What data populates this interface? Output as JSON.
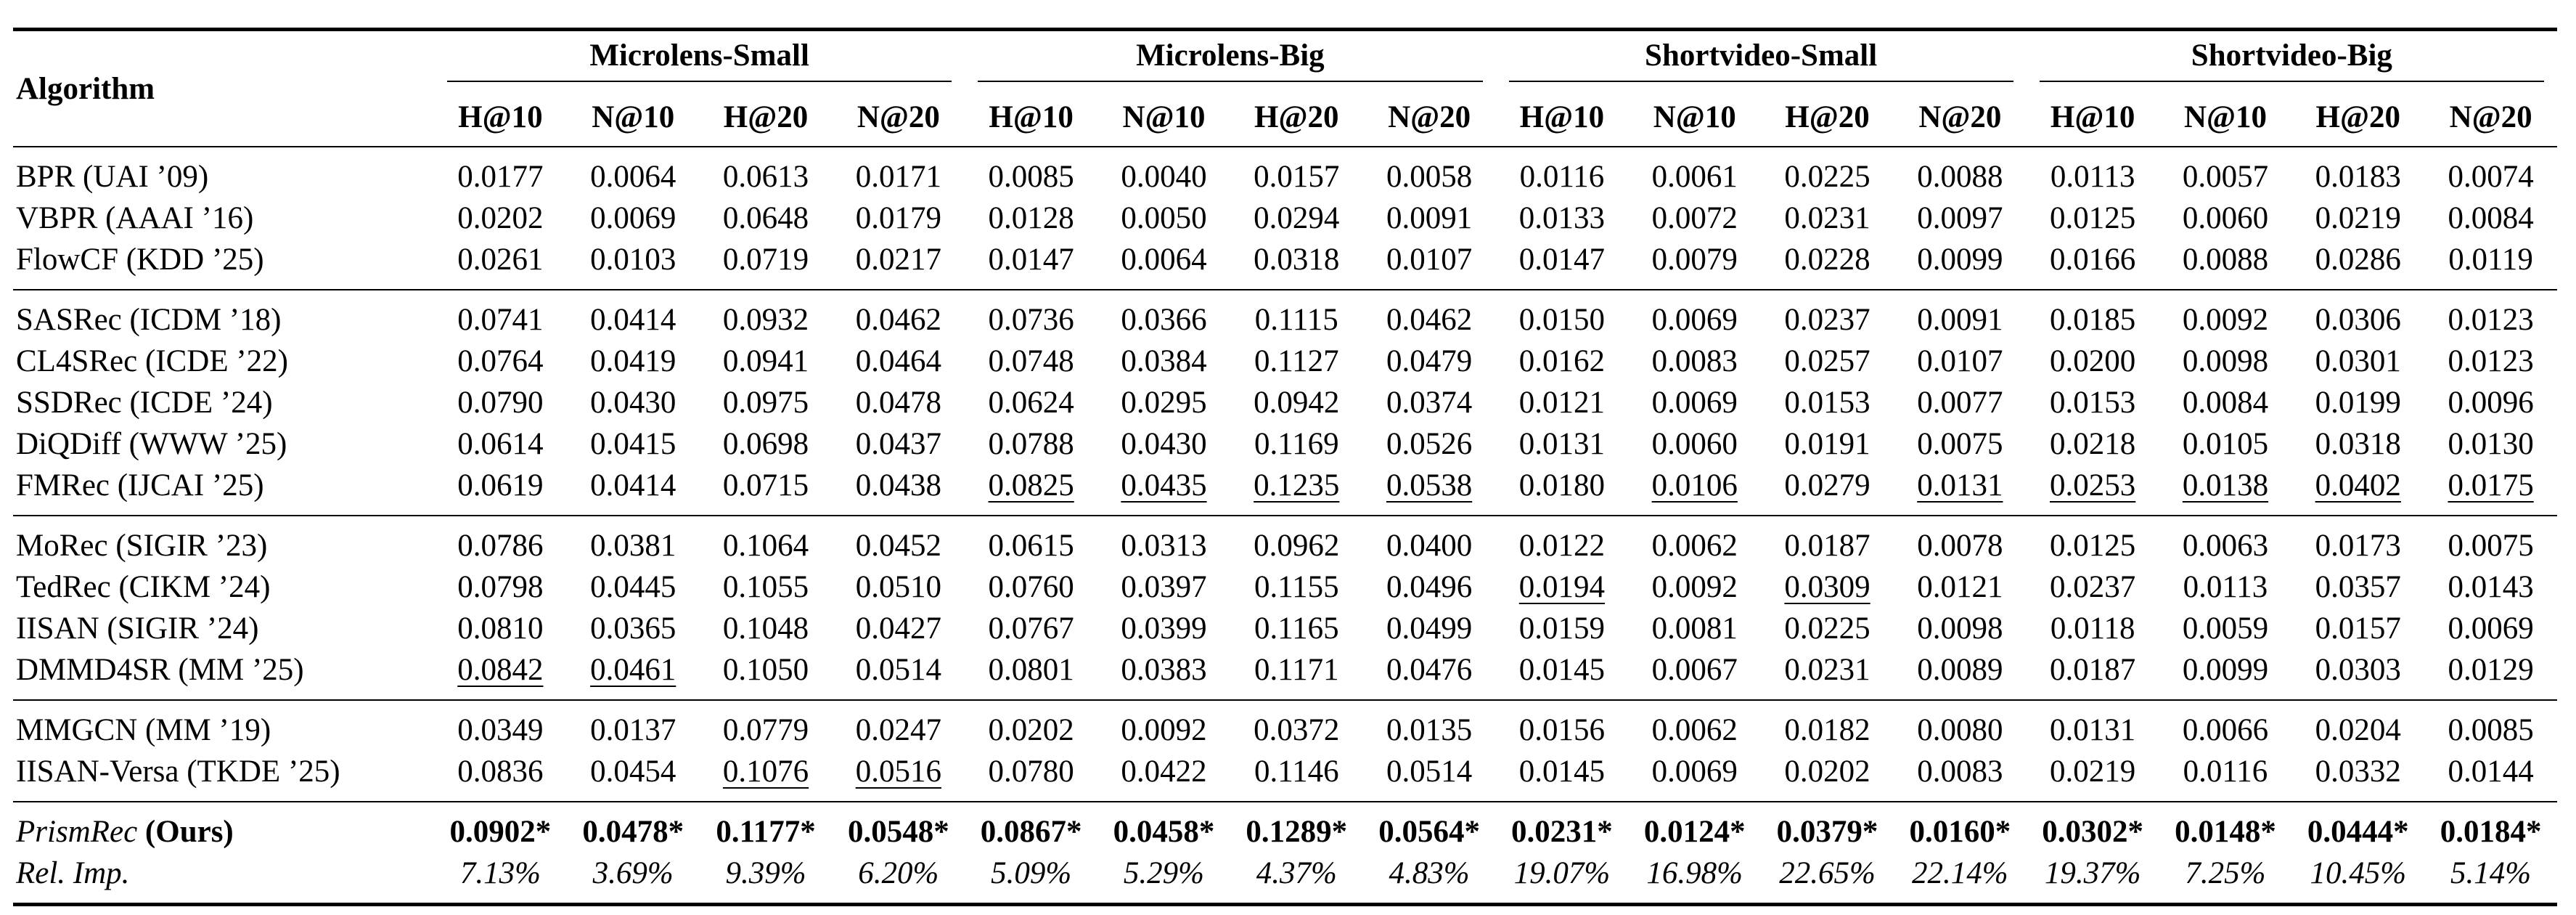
{
  "table": {
    "header": {
      "first": "Algorithm",
      "groups": [
        {
          "name": "Microlens-Small",
          "metrics": [
            "H@10",
            "N@10",
            "H@20",
            "N@20"
          ]
        },
        {
          "name": "Microlens-Big",
          "metrics": [
            "H@10",
            "N@10",
            "H@20",
            "N@20"
          ]
        },
        {
          "name": "Shortvideo-Small",
          "metrics": [
            "H@10",
            "N@10",
            "H@20",
            "N@20"
          ]
        },
        {
          "name": "Shortvideo-Big",
          "metrics": [
            "H@10",
            "N@10",
            "H@20",
            "N@20"
          ]
        }
      ]
    },
    "sections": [
      {
        "rows": [
          {
            "algorithm": "BPR (UAI ’09)",
            "values": [
              "0.0177",
              "0.0064",
              "0.0613",
              "0.0171",
              "0.0085",
              "0.0040",
              "0.0157",
              "0.0058",
              "0.0116",
              "0.0061",
              "0.0225",
              "0.0088",
              "0.0113",
              "0.0057",
              "0.0183",
              "0.0074"
            ]
          },
          {
            "algorithm": "VBPR (AAAI ’16)",
            "values": [
              "0.0202",
              "0.0069",
              "0.0648",
              "0.0179",
              "0.0128",
              "0.0050",
              "0.0294",
              "0.0091",
              "0.0133",
              "0.0072",
              "0.0231",
              "0.0097",
              "0.0125",
              "0.0060",
              "0.0219",
              "0.0084"
            ]
          },
          {
            "algorithm": "FlowCF (KDD ’25)",
            "values": [
              "0.0261",
              "0.0103",
              "0.0719",
              "0.0217",
              "0.0147",
              "0.0064",
              "0.0318",
              "0.0107",
              "0.0147",
              "0.0079",
              "0.0228",
              "0.0099",
              "0.0166",
              "0.0088",
              "0.0286",
              "0.0119"
            ]
          }
        ]
      },
      {
        "rows": [
          {
            "algorithm": "SASRec (ICDM ’18)",
            "values": [
              "0.0741",
              "0.0414",
              "0.0932",
              "0.0462",
              "0.0736",
              "0.0366",
              "0.1115",
              "0.0462",
              "0.0150",
              "0.0069",
              "0.0237",
              "0.0091",
              "0.0185",
              "0.0092",
              "0.0306",
              "0.0123"
            ]
          },
          {
            "algorithm": "CL4SRec (ICDE ’22)",
            "values": [
              "0.0764",
              "0.0419",
              "0.0941",
              "0.0464",
              "0.0748",
              "0.0384",
              "0.1127",
              "0.0479",
              "0.0162",
              "0.0083",
              "0.0257",
              "0.0107",
              "0.0200",
              "0.0098",
              "0.0301",
              "0.0123"
            ]
          },
          {
            "algorithm": "SSDRec (ICDE ’24)",
            "values": [
              "0.0790",
              "0.0430",
              "0.0975",
              "0.0478",
              "0.0624",
              "0.0295",
              "0.0942",
              "0.0374",
              "0.0121",
              "0.0069",
              "0.0153",
              "0.0077",
              "0.0153",
              "0.0084",
              "0.0199",
              "0.0096"
            ]
          },
          {
            "algorithm": "DiQDiff (WWW ’25)",
            "values": [
              "0.0614",
              "0.0415",
              "0.0698",
              "0.0437",
              "0.0788",
              "0.0430",
              "0.1169",
              "0.0526",
              "0.0131",
              "0.0060",
              "0.0191",
              "0.0075",
              "0.0218",
              "0.0105",
              "0.0318",
              "0.0130"
            ]
          },
          {
            "algorithm": "FMRec (IJCAI ’25)",
            "values": [
              "0.0619",
              "0.0414",
              "0.0715",
              "0.0438",
              "0.0825",
              "0.0435",
              "0.1235",
              "0.0538",
              "0.0180",
              "0.0106",
              "0.0279",
              "0.0131",
              "0.0253",
              "0.0138",
              "0.0402",
              "0.0175"
            ],
            "underlined": [
              4,
              5,
              6,
              7,
              9,
              11,
              12,
              13,
              14,
              15
            ]
          }
        ]
      },
      {
        "rows": [
          {
            "algorithm": "MoRec (SIGIR ’23)",
            "values": [
              "0.0786",
              "0.0381",
              "0.1064",
              "0.0452",
              "0.0615",
              "0.0313",
              "0.0962",
              "0.0400",
              "0.0122",
              "0.0062",
              "0.0187",
              "0.0078",
              "0.0125",
              "0.0063",
              "0.0173",
              "0.0075"
            ]
          },
          {
            "algorithm": "TedRec (CIKM ’24)",
            "values": [
              "0.0798",
              "0.0445",
              "0.1055",
              "0.0510",
              "0.0760",
              "0.0397",
              "0.1155",
              "0.0496",
              "0.0194",
              "0.0092",
              "0.0309",
              "0.0121",
              "0.0237",
              "0.0113",
              "0.0357",
              "0.0143"
            ],
            "underlined": [
              8,
              10
            ]
          },
          {
            "algorithm": "IISAN (SIGIR ’24)",
            "values": [
              "0.0810",
              "0.0365",
              "0.1048",
              "0.0427",
              "0.0767",
              "0.0399",
              "0.1165",
              "0.0499",
              "0.0159",
              "0.0081",
              "0.0225",
              "0.0098",
              "0.0118",
              "0.0059",
              "0.0157",
              "0.0069"
            ]
          },
          {
            "algorithm": "DMMD4SR (MM ’25)",
            "values": [
              "0.0842",
              "0.0461",
              "0.1050",
              "0.0514",
              "0.0801",
              "0.0383",
              "0.1171",
              "0.0476",
              "0.0145",
              "0.0067",
              "0.0231",
              "0.0089",
              "0.0187",
              "0.0099",
              "0.0303",
              "0.0129"
            ],
            "underlined": [
              0,
              1
            ]
          }
        ]
      },
      {
        "rows": [
          {
            "algorithm": "MMGCN (MM ’19)",
            "values": [
              "0.0349",
              "0.0137",
              "0.0779",
              "0.0247",
              "0.0202",
              "0.0092",
              "0.0372",
              "0.0135",
              "0.0156",
              "0.0062",
              "0.0182",
              "0.0080",
              "0.0131",
              "0.0066",
              "0.0204",
              "0.0085"
            ]
          },
          {
            "algorithm": "IISAN-Versa (TKDE ’25)",
            "values": [
              "0.0836",
              "0.0454",
              "0.1076",
              "0.0516",
              "0.0780",
              "0.0422",
              "0.1146",
              "0.0514",
              "0.0145",
              "0.0069",
              "0.0202",
              "0.0083",
              "0.0219",
              "0.0116",
              "0.0332",
              "0.0144"
            ],
            "underlined": [
              2,
              3
            ]
          }
        ]
      },
      {
        "rows": [
          {
            "name": "PrismRec",
            "suffix": "(Ours)",
            "style": "bold",
            "values": [
              "0.0902*",
              "0.0478*",
              "0.1177*",
              "0.0548*",
              "0.0867*",
              "0.0458*",
              "0.1289*",
              "0.0564*",
              "0.0231*",
              "0.0124*",
              "0.0379*",
              "0.0160*",
              "0.0302*",
              "0.0148*",
              "0.0444*",
              "0.0184*"
            ]
          },
          {
            "algorithm": "Rel. Imp.",
            "style": "italic",
            "values": [
              "7.13%",
              "3.69%",
              "9.39%",
              "6.20%",
              "5.09%",
              "5.29%",
              "4.37%",
              "4.83%",
              "19.07%",
              "16.98%",
              "22.65%",
              "22.14%",
              "19.37%",
              "7.25%",
              "10.45%",
              "5.14%"
            ]
          }
        ]
      }
    ]
  }
}
